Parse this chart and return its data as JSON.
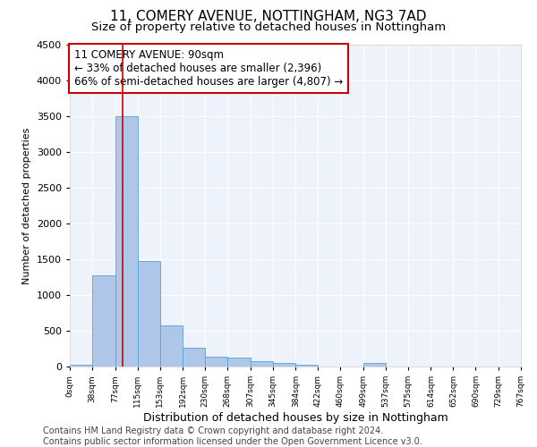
{
  "title1": "11, COMERY AVENUE, NOTTINGHAM, NG3 7AD",
  "title2": "Size of property relative to detached houses in Nottingham",
  "xlabel": "Distribution of detached houses by size in Nottingham",
  "ylabel": "Number of detached properties",
  "bar_color": "#aec6e8",
  "bar_edge_color": "#5a9fd4",
  "vline_color": "#cc0000",
  "vline_x": 90,
  "bin_edges": [
    0,
    38,
    77,
    115,
    153,
    192,
    230,
    268,
    307,
    345,
    384,
    422,
    460,
    499,
    537,
    575,
    614,
    652,
    690,
    729,
    767
  ],
  "bar_heights": [
    25,
    1270,
    3500,
    1480,
    580,
    260,
    135,
    130,
    70,
    45,
    30,
    5,
    5,
    45,
    5,
    5,
    5,
    5,
    5,
    5
  ],
  "ylim": [
    0,
    4500
  ],
  "yticks": [
    0,
    500,
    1000,
    1500,
    2000,
    2500,
    3000,
    3500,
    4000,
    4500
  ],
  "annotation_text": "11 COMERY AVENUE: 90sqm\n← 33% of detached houses are smaller (2,396)\n66% of semi-detached houses are larger (4,807) →",
  "annotation_box_color": "#ffffff",
  "annotation_box_edge_color": "#cc0000",
  "footer_text": "Contains HM Land Registry data © Crown copyright and database right 2024.\nContains public sector information licensed under the Open Government Licence v3.0.",
  "background_color": "#eef2fb",
  "title1_fontsize": 11,
  "title2_fontsize": 9.5,
  "xlabel_fontsize": 9,
  "ylabel_fontsize": 8,
  "footer_fontsize": 7,
  "annotation_fontsize": 8.5
}
